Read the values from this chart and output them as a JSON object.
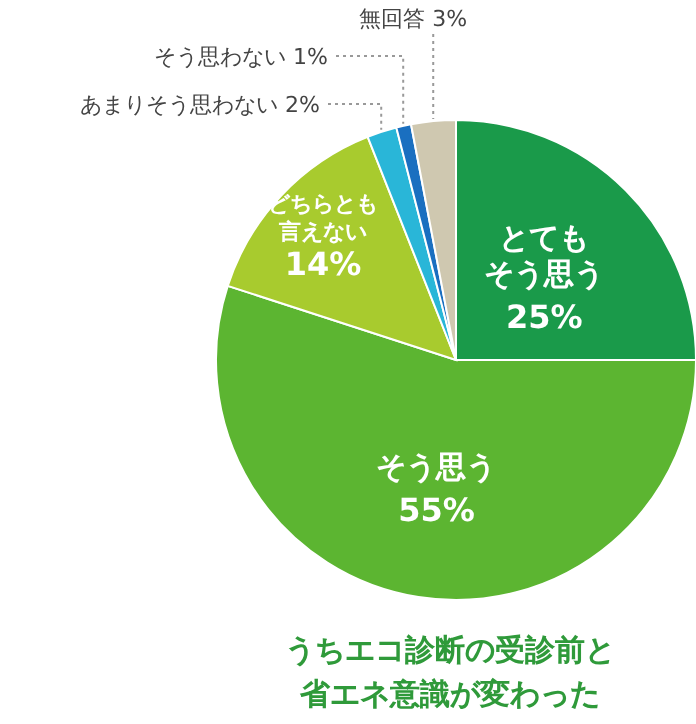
{
  "chart_data": {
    "type": "pie",
    "title": "うちエコ診断の受診前と省エネ意識が変わった",
    "categories": [
      "とてもそう思う",
      "そう思う",
      "どちらとも言えない",
      "あまりそう思わない",
      "そう思わない",
      "無回答"
    ],
    "values": [
      25,
      55,
      14,
      2,
      1,
      3
    ],
    "value_labels": [
      "25%",
      "55%",
      "14%",
      "2%",
      "1%",
      "3%"
    ],
    "colors": [
      "#1a9a4a",
      "#5cb531",
      "#a8cb2e",
      "#29b6d8",
      "#1a6fc0",
      "#cfc8b0"
    ],
    "legend": false
  }
}
